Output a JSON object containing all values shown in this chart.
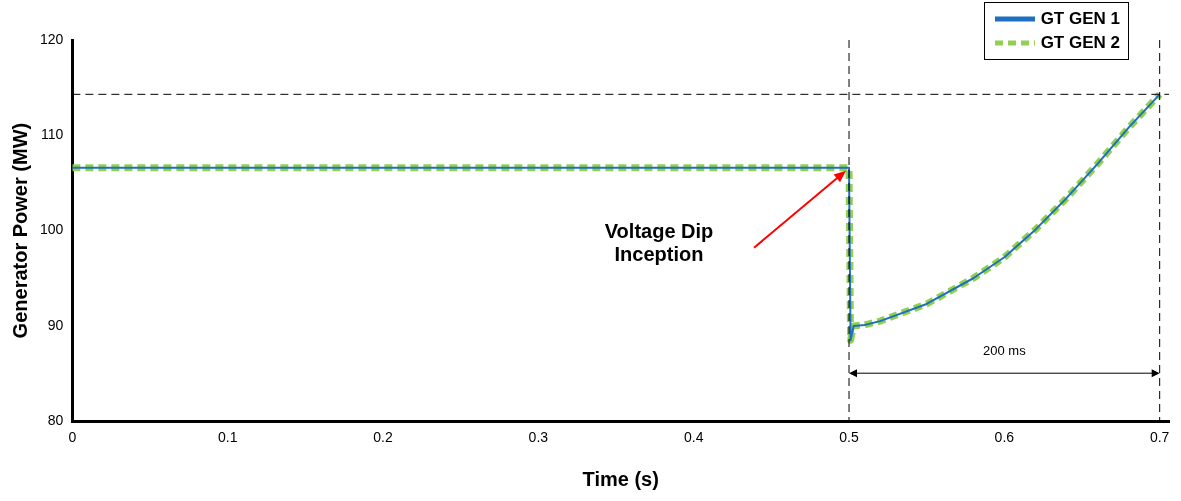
{
  "chart_data": {
    "type": "line",
    "xlabel": "Time (s)",
    "ylabel": "Generator Power (MW)",
    "xlim": [
      0,
      0.706
    ],
    "xticks": [
      0,
      0.1,
      0.2,
      0.3,
      0.4,
      0.5,
      0.6,
      0.7
    ],
    "ylim": [
      80,
      120
    ],
    "yticks": [
      80,
      90,
      100,
      110,
      120
    ],
    "grid": false,
    "legend": "top right",
    "marker": "none",
    "series": [
      {
        "name": "GT GEN 1",
        "color": "#1f6fbf",
        "line_style": "solid",
        "x": [
          0,
          0.5,
          0.501,
          0.503,
          0.51,
          0.52,
          0.55,
          0.58,
          0.6,
          0.62,
          0.64,
          0.66,
          0.68,
          0.7
        ],
        "values": [
          106.6,
          106.6,
          88.5,
          90,
          90.1,
          90.5,
          92.3,
          95,
          97.2,
          100.1,
          103.4,
          107,
          110.8,
          114.3
        ]
      },
      {
        "name": "GT GEN 2",
        "color": "#92d050",
        "line_style": "dashed",
        "x": [
          0,
          0.5,
          0.501,
          0.503,
          0.51,
          0.52,
          0.55,
          0.58,
          0.6,
          0.62,
          0.64,
          0.66,
          0.68,
          0.7
        ],
        "values": [
          106.6,
          106.6,
          88.5,
          90,
          90.1,
          90.5,
          92.3,
          95,
          97.2,
          100.1,
          103.4,
          107,
          110.8,
          114.3
        ]
      }
    ],
    "ref_lines": [
      {
        "axis": "y",
        "value": 114.3,
        "color": "#000000",
        "line_style": "dashed"
      },
      {
        "axis": "x",
        "value": 0.5,
        "color": "#000000",
        "line_style": "dashed"
      },
      {
        "axis": "x",
        "value": 0.7,
        "color": "#000000",
        "line_style": "dashed"
      }
    ],
    "annotations": [
      "Voltage Dip Inception",
      "200 ms"
    ]
  }
}
